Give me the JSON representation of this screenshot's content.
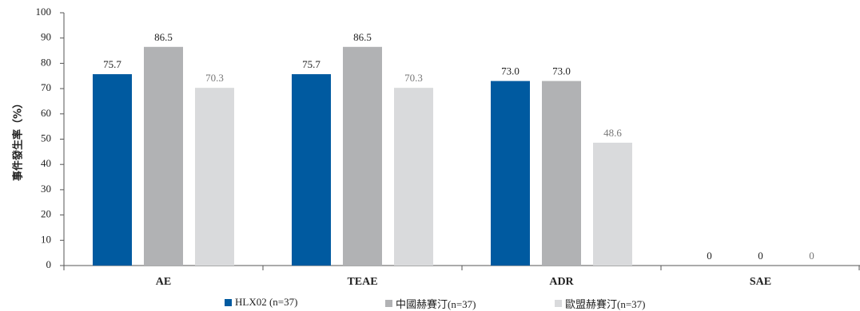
{
  "chart_data": {
    "type": "bar",
    "categories": [
      "AE",
      "TEAE",
      "ADR",
      "SAE"
    ],
    "series": [
      {
        "name": "HLX02 (n=37)",
        "values": [
          75.7,
          75.7,
          73.0,
          0
        ],
        "labels": [
          "75.7",
          "75.7",
          "73.0",
          "0"
        ],
        "color": "#005aa0",
        "label_color": "#222222"
      },
      {
        "name": "中國赫賽汀(n=37)",
        "values": [
          86.5,
          86.5,
          73.0,
          0
        ],
        "labels": [
          "86.5",
          "86.5",
          "73.0",
          "0"
        ],
        "color": "#b1b2b4",
        "label_color": "#222222"
      },
      {
        "name": "歐盟赫賽汀(n=37)",
        "values": [
          70.3,
          70.3,
          48.6,
          0
        ],
        "labels": [
          "70.3",
          "70.3",
          "48.6",
          "0"
        ],
        "color": "#d9dadc",
        "label_color": "#777777"
      }
    ],
    "ylabel": "事件發生率（%）",
    "ylim": [
      0,
      100
    ],
    "yticks": [
      0,
      10,
      20,
      30,
      40,
      50,
      60,
      70,
      80,
      90,
      100
    ],
    "grid": false,
    "legend": "bottom"
  }
}
